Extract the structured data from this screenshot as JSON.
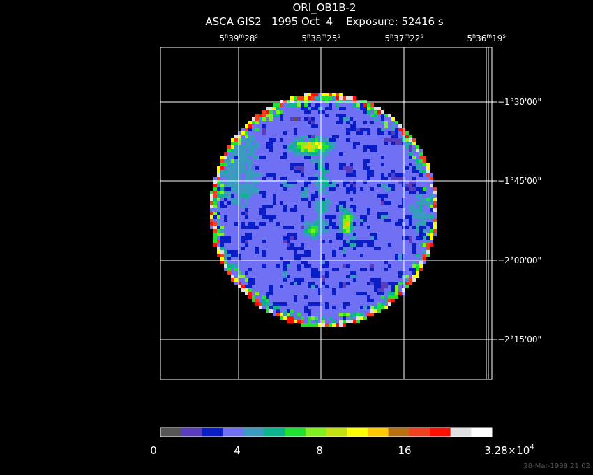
{
  "header": {
    "title": "ORI_OB1B-2",
    "subtitle": "ASCA GIS2   1995 Oct  4    Exposure: 52416 s"
  },
  "ra_labels": [
    [
      "5",
      "h",
      "39",
      "m",
      "28",
      "s"
    ],
    [
      "5",
      "h",
      "38",
      "m",
      "25",
      "s"
    ],
    [
      "5",
      "h",
      "37",
      "m",
      "22",
      "s"
    ],
    [
      "5",
      "h",
      "36",
      "m",
      "19",
      "s"
    ]
  ],
  "dec_labels": [
    "−1°30'00\"",
    "−1°45'00\"",
    "−2°00'00\"",
    "−2°15'00\""
  ],
  "colorbar": {
    "colors": [
      "#555555",
      "#5a3cbe",
      "#0a1ec8",
      "#7070f5",
      "#3a9ac0",
      "#0ab48c",
      "#20e030",
      "#80f020",
      "#c4e010",
      "#ffff00",
      "#ffc800",
      "#b87010",
      "#f04020",
      "#ff1000",
      "#e0e0e0",
      "#ffffff"
    ],
    "labels": [
      [
        "0"
      ],
      [
        "4"
      ],
      [
        "8"
      ],
      [
        "16"
      ],
      [
        "3.28×10",
        "4"
      ]
    ]
  },
  "timestamp": "28-Mar-1998 21:02"
}
